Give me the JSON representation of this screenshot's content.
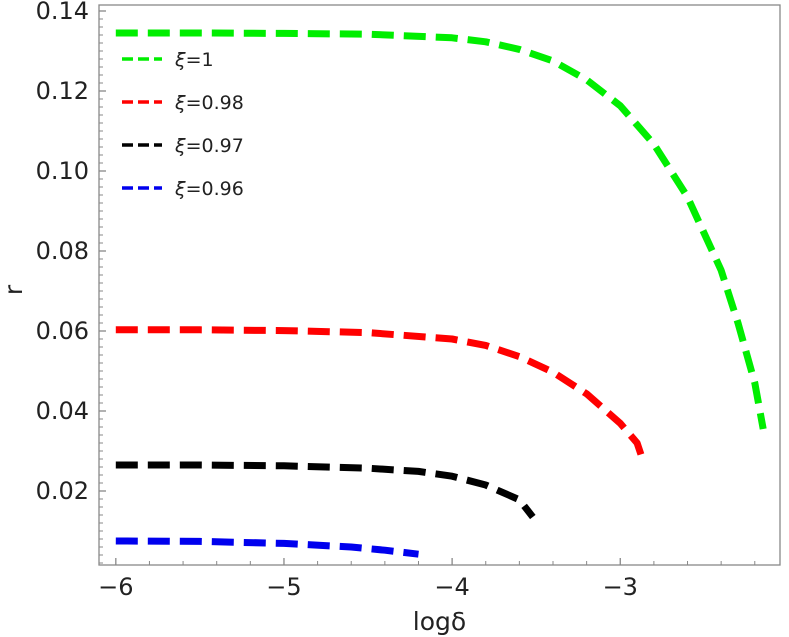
{
  "chart_data": {
    "type": "line",
    "title": "",
    "xlabel": "logδ",
    "ylabel": "r",
    "xlim": [
      -6.1,
      -2.05
    ],
    "ylim": [
      0.0015,
      0.1415
    ],
    "x_ticks": [
      -6,
      -5,
      -4,
      -3
    ],
    "x_tick_labels": [
      "−6",
      "−5",
      "−4",
      "−3"
    ],
    "y_ticks": [
      0.02,
      0.04,
      0.06,
      0.08,
      0.1,
      0.12,
      0.14
    ],
    "y_tick_labels": [
      "0.02",
      "0.04",
      "0.06",
      "0.08",
      "0.10",
      "0.12",
      "0.14"
    ],
    "grid": false,
    "legend_position": "top-left",
    "series": [
      {
        "name": "ξ=1",
        "color": "#00ee00",
        "x": [
          -6.0,
          -5.5,
          -5.0,
          -4.5,
          -4.0,
          -3.8,
          -3.6,
          -3.4,
          -3.2,
          -3.0,
          -2.8,
          -2.6,
          -2.4,
          -2.3,
          -2.2,
          -2.15
        ],
        "y": [
          0.1345,
          0.1345,
          0.1344,
          0.1342,
          0.1333,
          0.1323,
          0.1304,
          0.1275,
          0.1228,
          0.1163,
          0.1067,
          0.0935,
          0.0752,
          0.062,
          0.047,
          0.0355
        ]
      },
      {
        "name": "ξ=0.98",
        "color": "#ff0000",
        "x": [
          -6.0,
          -5.5,
          -5.0,
          -4.5,
          -4.0,
          -3.8,
          -3.6,
          -3.4,
          -3.2,
          -3.0,
          -2.9,
          -2.86
        ],
        "y": [
          0.0603,
          0.0603,
          0.0601,
          0.0596,
          0.058,
          0.0564,
          0.0536,
          0.0497,
          0.0443,
          0.0369,
          0.032,
          0.027
        ]
      },
      {
        "name": "ξ=0.97",
        "color": "#000000",
        "x": [
          -6.0,
          -5.5,
          -5.0,
          -4.5,
          -4.2,
          -4.0,
          -3.8,
          -3.6,
          -3.52
        ],
        "y": [
          0.0265,
          0.0265,
          0.0263,
          0.0257,
          0.0249,
          0.0237,
          0.0215,
          0.0178,
          0.0135
        ]
      },
      {
        "name": "ξ=0.96",
        "color": "#0000ee",
        "x": [
          -6.0,
          -5.5,
          -5.0,
          -4.6,
          -4.4,
          -4.2
        ],
        "y": [
          0.0075,
          0.0074,
          0.0069,
          0.006,
          0.0052,
          0.0042
        ]
      }
    ]
  }
}
